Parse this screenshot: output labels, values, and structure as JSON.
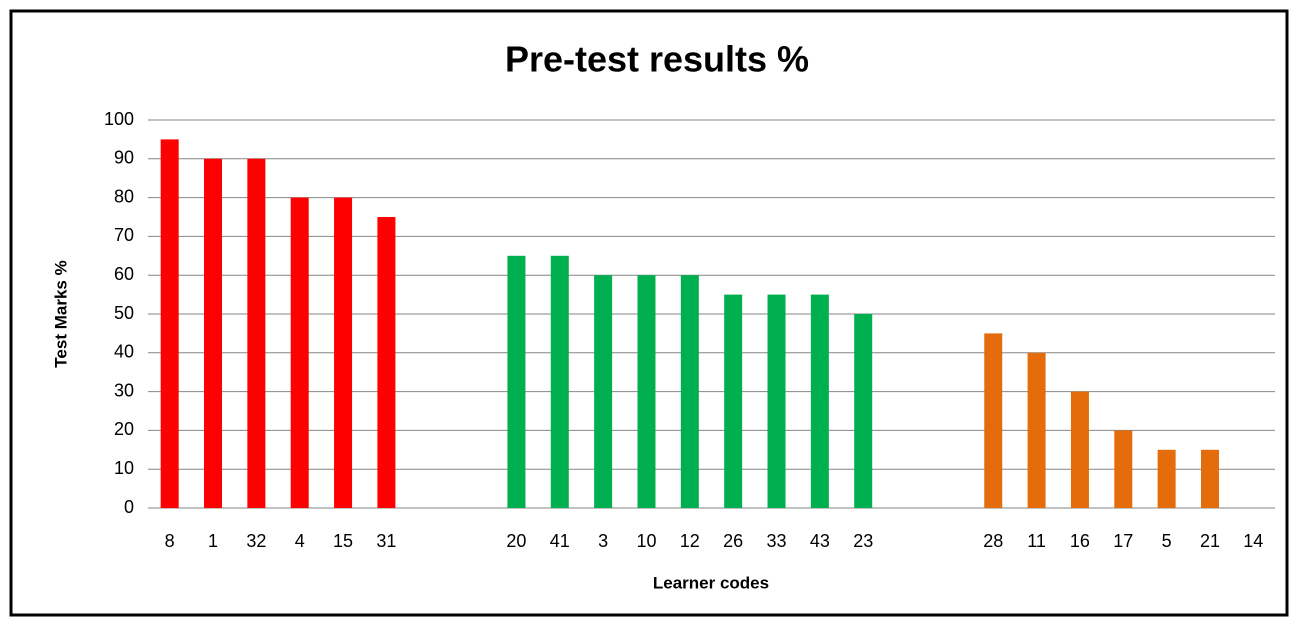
{
  "chart_data": {
    "type": "bar",
    "title": "Pre-test results %",
    "x_label": "Learner codes",
    "y_label": "Test Marks %",
    "categories": [
      "8",
      "1",
      "32",
      "4",
      "15",
      "31",
      null,
      null,
      "20",
      "41",
      "3",
      "10",
      "12",
      "26",
      "33",
      "43",
      "23",
      null,
      null,
      "28",
      "11",
      "16",
      "17",
      "5",
      "21",
      "14"
    ],
    "values": [
      95,
      90,
      90,
      80,
      80,
      75,
      null,
      null,
      65,
      65,
      60,
      60,
      60,
      55,
      55,
      55,
      50,
      null,
      null,
      45,
      40,
      30,
      20,
      15,
      15,
      0
    ],
    "colors": [
      "#ff0000",
      "#ff0000",
      "#ff0000",
      "#ff0000",
      "#ff0000",
      "#ff0000",
      null,
      null,
      "#00b050",
      "#00b050",
      "#00b050",
      "#00b050",
      "#00b050",
      "#00b050",
      "#00b050",
      "#00b050",
      "#00b050",
      null,
      null,
      "#e46c0a",
      "#e46c0a",
      "#e46c0a",
      "#e46c0a",
      "#e46c0a",
      "#e46c0a",
      "#e46c0a"
    ],
    "ylim": [
      0,
      100
    ],
    "yticks": [
      0,
      10,
      20,
      30,
      40,
      50,
      60,
      70,
      80,
      90,
      100
    ],
    "grid": true
  }
}
